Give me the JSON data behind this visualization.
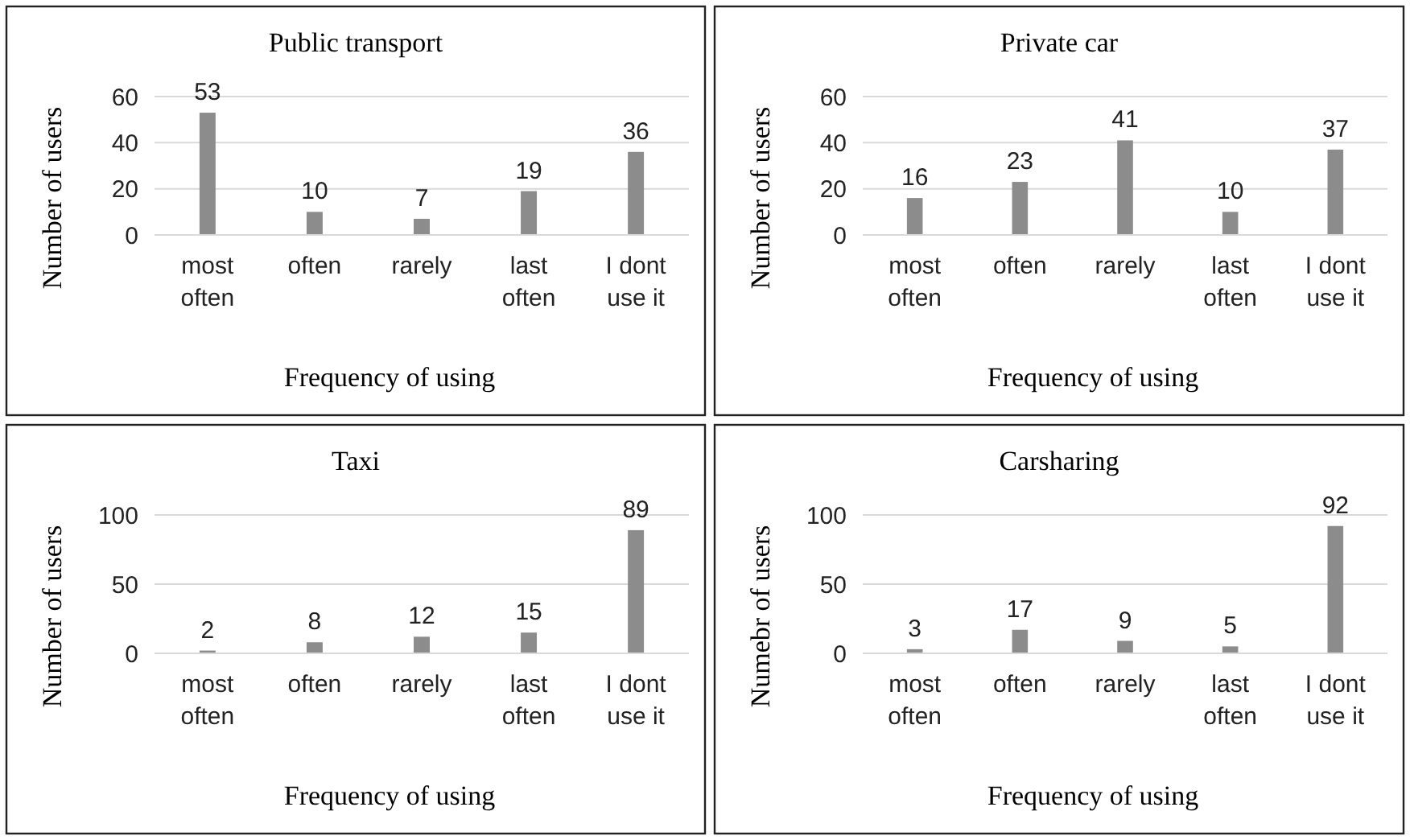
{
  "chart_data": [
    {
      "type": "bar",
      "title": "Public transport",
      "xlabel": "Frequency of using",
      "ylabel": "Number of users",
      "categories": [
        "most often",
        "often",
        "rarely",
        "last often",
        "I dont use it"
      ],
      "values": [
        53,
        10,
        7,
        19,
        36
      ],
      "color": "#8c8c8c",
      "ylim": [
        0,
        60
      ],
      "yticks": [
        0,
        20,
        40,
        60
      ],
      "grid": "y",
      "data_labels": true
    },
    {
      "type": "bar",
      "title": "Private car",
      "xlabel": "Frequency of using",
      "ylabel": "Number of users",
      "categories": [
        "most often",
        "often",
        "rarely",
        "last often",
        "I dont use it"
      ],
      "values": [
        16,
        23,
        41,
        10,
        37
      ],
      "color": "#8c8c8c",
      "ylim": [
        0,
        60
      ],
      "yticks": [
        0,
        20,
        40,
        60
      ],
      "grid": "y",
      "data_labels": true
    },
    {
      "type": "bar",
      "title": "Taxi",
      "xlabel": "Frequency of using",
      "ylabel": "Number of users",
      "categories": [
        "most often",
        "often",
        "rarely",
        "last often",
        "I dont use it"
      ],
      "values": [
        2,
        8,
        12,
        15,
        89
      ],
      "color": "#8c8c8c",
      "ylim": [
        0,
        100
      ],
      "yticks": [
        0,
        50,
        100
      ],
      "grid": "y",
      "data_labels": true
    },
    {
      "type": "bar",
      "title": "Carsharing",
      "xlabel": "Frequency of using",
      "ylabel": "Numebr of users",
      "categories": [
        "most often",
        "often",
        "rarely",
        "last often",
        "I dont use it"
      ],
      "values": [
        3,
        17,
        9,
        5,
        92
      ],
      "color": "#8c8c8c",
      "ylim": [
        0,
        100
      ],
      "yticks": [
        0,
        50,
        100
      ],
      "grid": "y",
      "data_labels": true
    }
  ]
}
